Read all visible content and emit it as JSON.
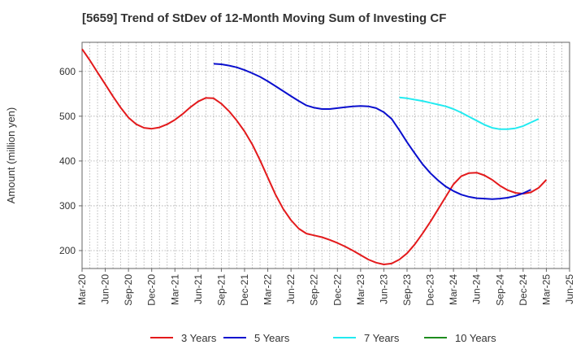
{
  "title": "[5659]  Trend of StDev of 12-Month Moving Sum of Investing CF",
  "chart_data": {
    "type": "line",
    "ylabel": "Amount (million yen)",
    "xlabel": "",
    "ylim": [
      160,
      665
    ],
    "yticks": [
      200,
      300,
      400,
      500,
      600
    ],
    "x_ticks": [
      "Mar-20",
      "Jun-20",
      "Sep-20",
      "Dec-20",
      "Mar-21",
      "Jun-21",
      "Sep-21",
      "Dec-21",
      "Mar-22",
      "Jun-22",
      "Sep-22",
      "Dec-22",
      "Mar-23",
      "Jun-23",
      "Sep-23",
      "Dec-23",
      "Mar-24",
      "Jun-24",
      "Sep-24",
      "Dec-24",
      "Mar-25",
      "Jun-25"
    ],
    "grid": true,
    "legend_position": "bottom",
    "series": [
      {
        "name": "3 Years",
        "color": "#e31a1c",
        "points": [
          [
            "Mar-20",
            650
          ],
          [
            "Apr-20",
            625
          ],
          [
            "May-20",
            598
          ],
          [
            "Jun-20",
            571
          ],
          [
            "Jul-20",
            544
          ],
          [
            "Aug-20",
            519
          ],
          [
            "Sep-20",
            497
          ],
          [
            "Oct-20",
            482
          ],
          [
            "Nov-20",
            474
          ],
          [
            "Dec-20",
            472
          ],
          [
            "Jan-21",
            475
          ],
          [
            "Feb-21",
            482
          ],
          [
            "Mar-21",
            492
          ],
          [
            "Apr-21",
            505
          ],
          [
            "May-21",
            520
          ],
          [
            "Jun-21",
            533
          ],
          [
            "Jul-21",
            541
          ],
          [
            "Aug-21",
            540
          ],
          [
            "Sep-21",
            528
          ],
          [
            "Oct-21",
            511
          ],
          [
            "Nov-21",
            490
          ],
          [
            "Dec-21",
            466
          ],
          [
            "Jan-22",
            437
          ],
          [
            "Feb-22",
            402
          ],
          [
            "Mar-22",
            363
          ],
          [
            "Apr-22",
            325
          ],
          [
            "May-22",
            293
          ],
          [
            "Jun-22",
            268
          ],
          [
            "Jul-22",
            249
          ],
          [
            "Aug-22",
            238
          ],
          [
            "Sep-22",
            234
          ],
          [
            "Oct-22",
            230
          ],
          [
            "Nov-22",
            224
          ],
          [
            "Dec-22",
            217
          ],
          [
            "Jan-23",
            209
          ],
          [
            "Feb-23",
            200
          ],
          [
            "Mar-23",
            190
          ],
          [
            "Apr-23",
            180
          ],
          [
            "May-23",
            173
          ],
          [
            "Jun-23",
            169
          ],
          [
            "Jul-23",
            171
          ],
          [
            "Aug-23",
            180
          ],
          [
            "Sep-23",
            194
          ],
          [
            "Oct-23",
            214
          ],
          [
            "Nov-23",
            238
          ],
          [
            "Dec-23",
            264
          ],
          [
            "Jan-24",
            292
          ],
          [
            "Feb-24",
            320
          ],
          [
            "Mar-24",
            348
          ],
          [
            "Apr-24",
            366
          ],
          [
            "May-24",
            373
          ],
          [
            "Jun-24",
            374
          ],
          [
            "Jul-24",
            368
          ],
          [
            "Aug-24",
            358
          ],
          [
            "Sep-24",
            345
          ],
          [
            "Oct-24",
            335
          ],
          [
            "Nov-24",
            329
          ],
          [
            "Dec-24",
            327
          ],
          [
            "Jan-25",
            330
          ],
          [
            "Feb-25",
            340
          ],
          [
            "Mar-25",
            358
          ]
        ]
      },
      {
        "name": "5 Years",
        "color": "#0a0fce",
        "points": [
          [
            "Aug-21",
            617
          ],
          [
            "Sep-21",
            616
          ],
          [
            "Oct-21",
            613
          ],
          [
            "Nov-21",
            609
          ],
          [
            "Dec-21",
            603
          ],
          [
            "Jan-22",
            596
          ],
          [
            "Feb-22",
            588
          ],
          [
            "Mar-22",
            578
          ],
          [
            "Apr-22",
            567
          ],
          [
            "May-22",
            556
          ],
          [
            "Jun-22",
            545
          ],
          [
            "Jul-22",
            534
          ],
          [
            "Aug-22",
            524
          ],
          [
            "Sep-22",
            519
          ],
          [
            "Oct-22",
            516
          ],
          [
            "Nov-22",
            516
          ],
          [
            "Dec-22",
            518
          ],
          [
            "Jan-23",
            520
          ],
          [
            "Feb-23",
            522
          ],
          [
            "Mar-23",
            523
          ],
          [
            "Apr-23",
            522
          ],
          [
            "May-23",
            518
          ],
          [
            "Jun-23",
            509
          ],
          [
            "Jul-23",
            494
          ],
          [
            "Aug-23",
            469
          ],
          [
            "Sep-23",
            442
          ],
          [
            "Oct-23",
            417
          ],
          [
            "Nov-23",
            393
          ],
          [
            "Dec-23",
            373
          ],
          [
            "Jan-24",
            357
          ],
          [
            "Feb-24",
            343
          ],
          [
            "Mar-24",
            333
          ],
          [
            "Apr-24",
            325
          ],
          [
            "May-24",
            320
          ],
          [
            "Jun-24",
            317
          ],
          [
            "Jul-24",
            316
          ],
          [
            "Aug-24",
            315
          ],
          [
            "Sep-24",
            316
          ],
          [
            "Oct-24",
            318
          ],
          [
            "Nov-24",
            322
          ],
          [
            "Dec-24",
            328
          ],
          [
            "Jan-25",
            336
          ]
        ]
      },
      {
        "name": "7 Years",
        "color": "#22eaf0",
        "points": [
          [
            "Aug-23",
            542
          ],
          [
            "Sep-23",
            540
          ],
          [
            "Oct-23",
            537
          ],
          [
            "Nov-23",
            534
          ],
          [
            "Dec-23",
            530
          ],
          [
            "Jan-24",
            526
          ],
          [
            "Feb-24",
            522
          ],
          [
            "Mar-24",
            516
          ],
          [
            "Apr-24",
            508
          ],
          [
            "May-24",
            499
          ],
          [
            "Jun-24",
            490
          ],
          [
            "Jul-24",
            481
          ],
          [
            "Aug-24",
            474
          ],
          [
            "Sep-24",
            471
          ],
          [
            "Oct-24",
            471
          ],
          [
            "Nov-24",
            473
          ],
          [
            "Dec-24",
            478
          ],
          [
            "Jan-25",
            486
          ],
          [
            "Feb-25",
            494
          ]
        ]
      },
      {
        "name": "10 Years",
        "color": "#1e8c1e",
        "points": []
      }
    ]
  }
}
